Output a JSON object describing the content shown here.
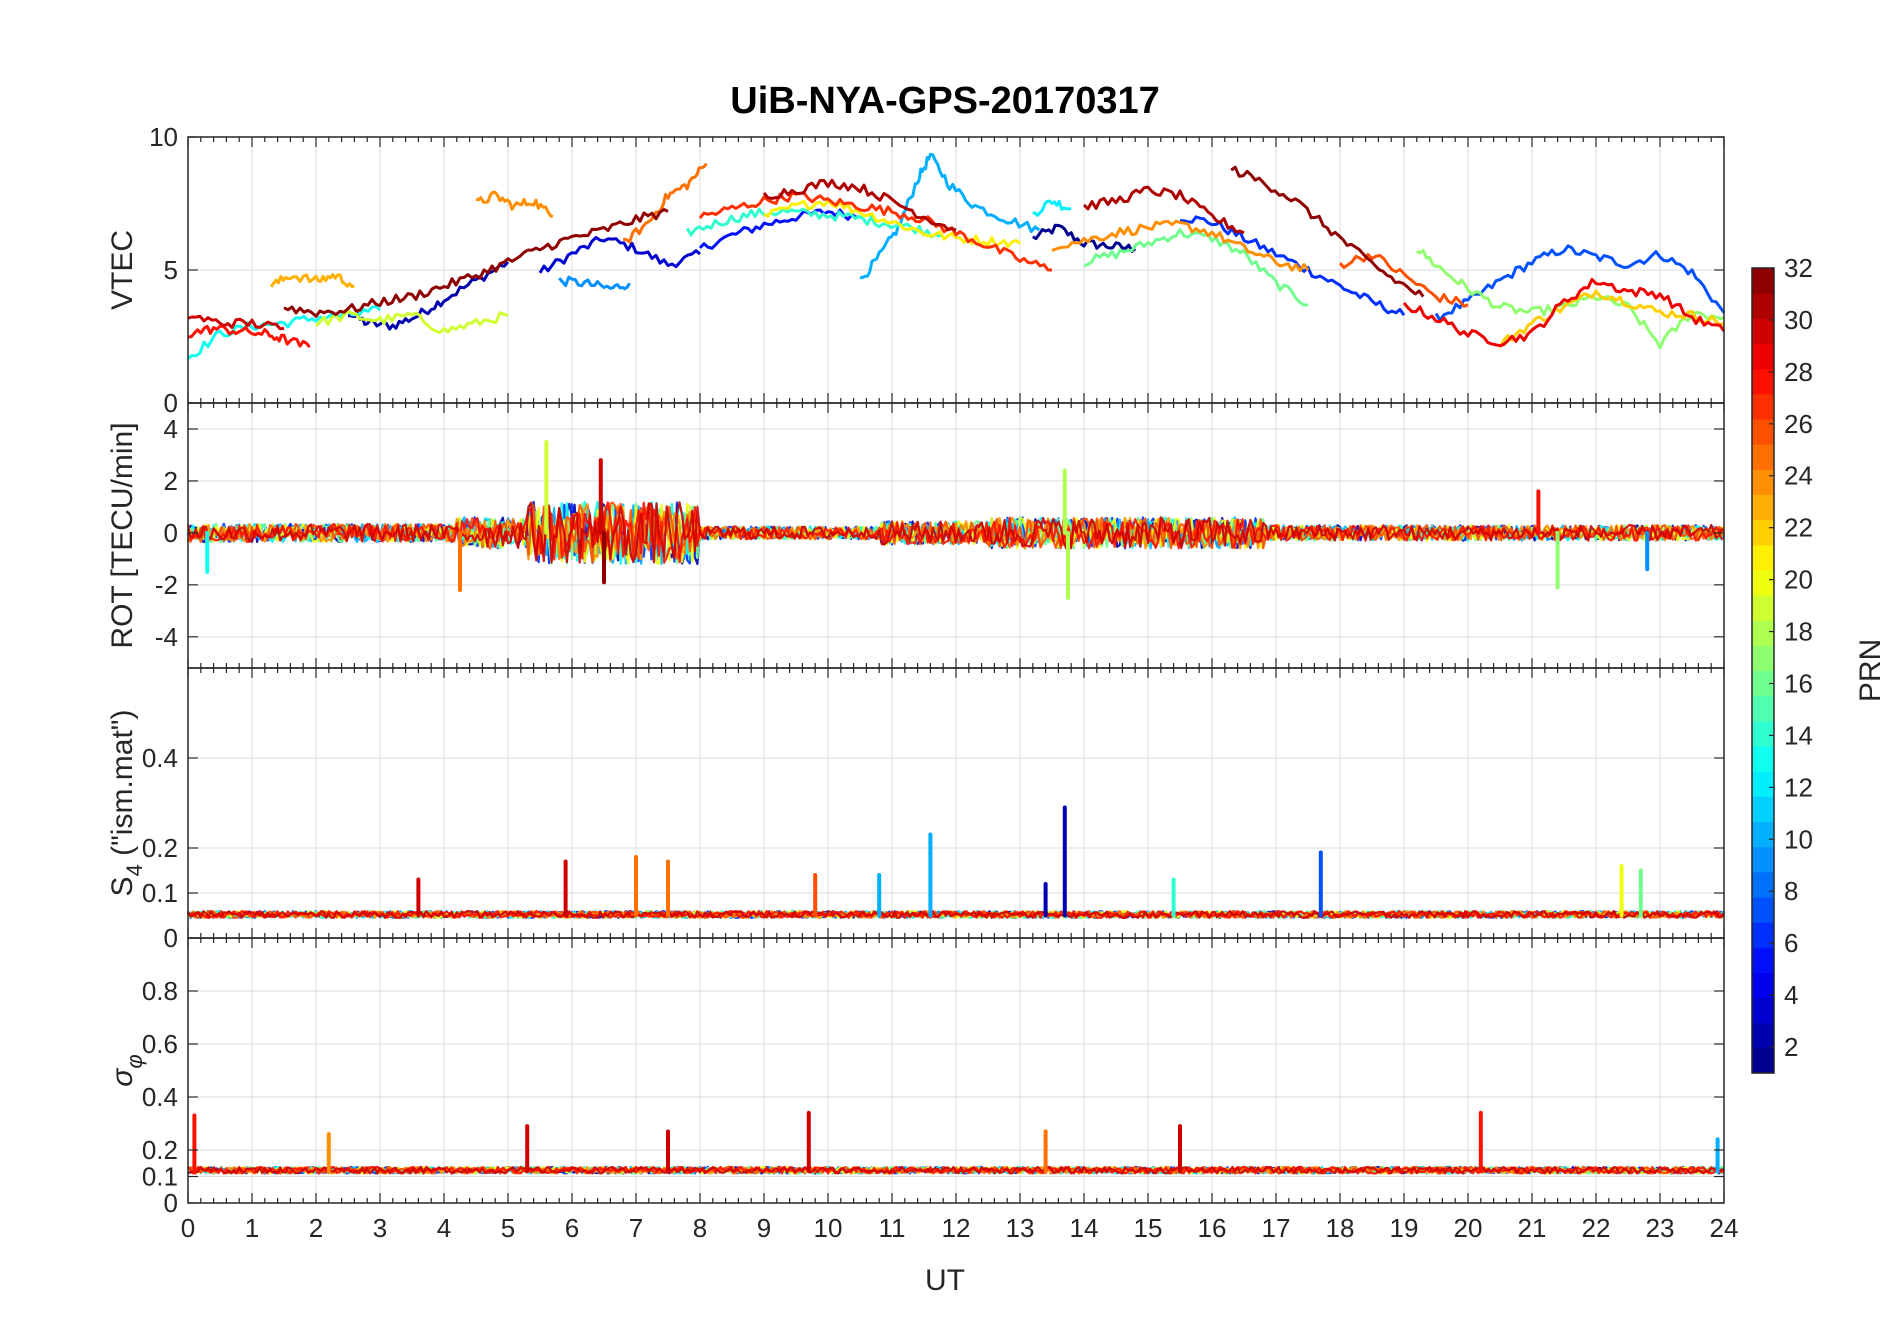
{
  "chart_data": {
    "title": "UiB-NYA-GPS-20170317",
    "xlabel": "UT",
    "xlim": [
      0,
      24
    ],
    "x_ticks": [
      "0",
      "1",
      "2",
      "3",
      "4",
      "5",
      "6",
      "7",
      "8",
      "9",
      "10",
      "11",
      "12",
      "13",
      "14",
      "15",
      "16",
      "17",
      "18",
      "19",
      "20",
      "21",
      "22",
      "23",
      "24"
    ],
    "grid": true,
    "colormap": "jet",
    "colorbar": {
      "label": "PRN",
      "range": [
        1,
        32
      ],
      "ticks": [
        "2",
        "4",
        "6",
        "8",
        "10",
        "12",
        "14",
        "16",
        "18",
        "20",
        "22",
        "24",
        "26",
        "28",
        "30",
        "32"
      ],
      "placement": "right"
    },
    "panels": [
      {
        "type": "line",
        "ylabel": "VTEC",
        "ylim": [
          0,
          10
        ],
        "y_ticks": [
          "0",
          "5",
          "10"
        ],
        "y_tick_values": [
          0,
          5,
          10
        ],
        "series": [
          {
            "prn": 1,
            "x": [
              13.2,
              13.6,
              14.0,
              14.4,
              14.8
            ],
            "y": [
              6.2,
              6.6,
              6.0,
              5.9,
              5.8
            ]
          },
          {
            "prn": 2,
            "x": [
              2.5,
              2.8,
              3.2,
              3.6,
              4.0,
              4.5,
              5.0
            ],
            "y": [
              3.4,
              3.0,
              2.9,
              3.3,
              3.9,
              4.6,
              5.3
            ]
          },
          {
            "prn": 3,
            "x": [
              5.5,
              6.0,
              6.5,
              7.0,
              7.5,
              8.0
            ],
            "y": [
              4.9,
              5.6,
              6.2,
              5.8,
              5.2,
              5.6
            ]
          },
          {
            "prn": 5,
            "x": [
              8.0,
              8.5,
              9.0,
              9.5,
              10.0,
              10.5
            ],
            "y": [
              5.8,
              6.3,
              6.7,
              7.0,
              7.2,
              7.0
            ]
          },
          {
            "prn": 6,
            "x": [
              15.5,
              16.0,
              16.5,
              17.0,
              17.5,
              18.0,
              18.5,
              19.0
            ],
            "y": [
              7.0,
              6.8,
              6.2,
              5.6,
              5.0,
              4.4,
              3.8,
              3.3
            ]
          },
          {
            "prn": 7,
            "x": [
              19.5,
              20.0,
              20.5,
              21.0,
              21.5,
              22.0,
              22.5,
              23.0,
              23.5,
              24.0
            ],
            "y": [
              3.2,
              3.8,
              4.6,
              5.3,
              5.8,
              5.5,
              5.2,
              5.6,
              4.9,
              3.4
            ]
          },
          {
            "prn": 9,
            "x": [
              5.8,
              6.2,
              6.6,
              6.9
            ],
            "y": [
              4.6,
              4.5,
              4.3,
              4.5
            ]
          },
          {
            "prn": 10,
            "x": [
              10.5,
              10.8,
              11.1,
              11.4,
              11.6,
              11.9,
              12.3,
              12.8,
              13.3
            ],
            "y": [
              4.6,
              5.5,
              6.6,
              8.4,
              9.3,
              8.2,
              7.4,
              6.9,
              6.5
            ]
          },
          {
            "prn": 12,
            "x": [
              13.2,
              13.5,
              13.8
            ],
            "y": [
              7.1,
              7.6,
              7.3
            ]
          },
          {
            "prn": 13,
            "x": [
              0.0,
              0.5,
              1.0,
              1.5,
              2.0,
              2.5,
              3.0
            ],
            "y": [
              1.7,
              2.6,
              2.9,
              3.0,
              3.2,
              3.3,
              3.5
            ]
          },
          {
            "prn": 14,
            "x": [
              7.8,
              8.3,
              8.8,
              9.3,
              9.8,
              10.3,
              10.8,
              11.3,
              11.8
            ],
            "y": [
              6.4,
              6.8,
              7.1,
              7.2,
              7.1,
              7.0,
              6.8,
              6.6,
              6.3
            ]
          },
          {
            "prn": 16,
            "x": [
              14.0,
              14.5,
              15.0,
              15.5,
              16.0,
              16.5,
              17.0,
              17.5
            ],
            "y": [
              5.3,
              5.6,
              6.0,
              6.4,
              6.2,
              5.6,
              4.5,
              3.7
            ]
          },
          {
            "prn": 17,
            "x": [
              19.2,
              19.6,
              20.0,
              20.5,
              21.0,
              21.5,
              22.0,
              22.5,
              23.0,
              23.5,
              24.0
            ],
            "y": [
              5.8,
              5.0,
              4.3,
              3.6,
              3.4,
              3.6,
              4.0,
              3.6,
              2.2,
              3.4,
              3.2
            ]
          },
          {
            "prn": 19,
            "x": [
              2.0,
              2.5,
              3.0,
              3.5,
              4.0,
              4.5,
              5.0
            ],
            "y": [
              3.0,
              3.3,
              3.1,
              3.3,
              2.7,
              3.0,
              3.3
            ]
          },
          {
            "prn": 21,
            "x": [
              9.0,
              9.5,
              10.0,
              10.5,
              11.0,
              11.5,
              12.0,
              12.5,
              13.0
            ],
            "y": [
              7.0,
              7.4,
              7.6,
              7.2,
              6.8,
              6.4,
              6.2,
              6.1,
              6.0
            ]
          },
          {
            "prn": 22,
            "x": [
              20.5,
              21.0,
              21.5,
              22.0,
              22.5,
              23.0,
              23.5,
              24.0
            ],
            "y": [
              2.2,
              3.0,
              3.6,
              4.2,
              3.8,
              3.4,
              3.3,
              3.0
            ]
          },
          {
            "prn": 23,
            "x": [
              1.3,
              1.6,
              2.0,
              2.3,
              2.6
            ],
            "y": [
              4.4,
              4.8,
              4.6,
              4.8,
              4.4
            ]
          },
          {
            "prn": 24,
            "x": [
              4.5,
              4.8,
              5.1,
              5.4,
              5.7
            ],
            "y": [
              7.5,
              7.8,
              7.4,
              7.6,
              7.0
            ]
          },
          {
            "prn": 24,
            "x": [
              13.5,
              14.0,
              14.5,
              15.0,
              15.5,
              16.0,
              16.5,
              17.0,
              17.5
            ],
            "y": [
              5.9,
              6.1,
              6.4,
              6.6,
              6.7,
              6.4,
              5.8,
              5.3,
              5.0
            ]
          },
          {
            "prn": 25,
            "x": [
              6.8,
              7.2,
              7.5,
              7.8,
              8.1
            ],
            "y": [
              6.0,
              6.8,
              7.8,
              8.2,
              9.0
            ]
          },
          {
            "prn": 26,
            "x": [
              18.0,
              18.5,
              19.0,
              19.5,
              20.0
            ],
            "y": [
              5.2,
              5.6,
              4.8,
              4.0,
              3.7
            ]
          },
          {
            "prn": 27,
            "x": [
              8.0,
              8.5,
              9.0,
              9.5,
              10.0,
              10.5,
              11.0,
              11.5,
              12.0,
              12.5,
              13.0,
              13.5
            ],
            "y": [
              7.0,
              7.3,
              7.6,
              7.8,
              7.6,
              7.4,
              7.2,
              6.9,
              6.4,
              5.9,
              5.4,
              5.0
            ]
          },
          {
            "prn": 28,
            "x": [
              0.0,
              0.4,
              0.8,
              1.2,
              1.5,
              1.9
            ],
            "y": [
              2.6,
              2.8,
              2.7,
              2.6,
              2.4,
              2.1
            ]
          },
          {
            "prn": 29,
            "x": [
              19.0,
              19.5,
              20.0,
              20.5,
              21.0,
              21.5,
              22.0,
              22.5,
              23.0,
              23.5,
              24.0
            ],
            "y": [
              3.7,
              3.2,
              2.6,
              2.3,
              2.6,
              3.8,
              4.6,
              4.2,
              4.1,
              3.2,
              2.7
            ]
          },
          {
            "prn": 30,
            "x": [
              0.0,
              0.5,
              1.0,
              1.5
            ],
            "y": [
              3.3,
              3.0,
              3.0,
              2.8
            ]
          },
          {
            "prn": 31,
            "x": [
              9.0,
              9.5,
              10.0,
              10.5,
              11.0,
              11.5,
              12.0
            ],
            "y": [
              7.8,
              8.0,
              8.3,
              8.1,
              7.6,
              7.0,
              6.5
            ]
          },
          {
            "prn": 31,
            "x": [
              14.0,
              14.5,
              15.0,
              15.5,
              16.0,
              16.5
            ],
            "y": [
              7.4,
              7.6,
              8.0,
              7.8,
              7.0,
              6.4
            ]
          },
          {
            "prn": 32,
            "x": [
              1.5,
              2.0,
              2.5,
              3.0,
              3.5,
              4.0,
              4.5,
              5.0,
              5.5,
              6.0,
              6.5,
              7.0,
              7.5
            ],
            "y": [
              3.6,
              3.4,
              3.5,
              3.8,
              4.0,
              4.4,
              4.8,
              5.3,
              5.8,
              6.2,
              6.5,
              6.9,
              7.2
            ]
          },
          {
            "prn": 32,
            "x": [
              16.3,
              16.8,
              17.3,
              17.8,
              18.3,
              18.8,
              19.3
            ],
            "y": [
              8.8,
              8.3,
              7.6,
              6.6,
              5.6,
              4.7,
              4.0
            ]
          }
        ]
      },
      {
        "type": "line",
        "ylabel": "ROT [TECU/min]",
        "ylim": [
          -5.2,
          5
        ],
        "y_ticks": [
          "-4",
          "-2",
          "0",
          "2",
          "4"
        ],
        "y_tick_values": [
          -4,
          -2,
          0,
          2,
          4
        ],
        "baseline": 0,
        "activity": [
          {
            "x0": 0.0,
            "x1": 4.2,
            "amp": 0.35
          },
          {
            "x0": 4.2,
            "x1": 5.3,
            "amp": 0.6
          },
          {
            "x0": 5.3,
            "x1": 8.0,
            "amp": 1.2
          },
          {
            "x0": 8.0,
            "x1": 10.8,
            "amp": 0.25
          },
          {
            "x0": 10.8,
            "x1": 12.5,
            "amp": 0.45
          },
          {
            "x0": 12.5,
            "x1": 16.8,
            "amp": 0.6
          },
          {
            "x0": 16.8,
            "x1": 24.0,
            "amp": 0.3
          }
        ],
        "spikes": [
          {
            "x": 4.25,
            "y": -2.2,
            "prn": 25
          },
          {
            "x": 5.6,
            "y": 3.5,
            "prn": 19
          },
          {
            "x": 6.45,
            "y": 2.8,
            "prn": 30
          },
          {
            "x": 6.5,
            "y": -1.9,
            "prn": 32
          },
          {
            "x": 13.7,
            "y": 2.4,
            "prn": 18
          },
          {
            "x": 13.75,
            "y": -2.5,
            "prn": 18
          },
          {
            "x": 21.4,
            "y": -2.1,
            "prn": 17
          },
          {
            "x": 21.1,
            "y": 1.6,
            "prn": 28
          },
          {
            "x": 0.3,
            "y": -1.5,
            "prn": 13
          },
          {
            "x": 22.8,
            "y": -1.4,
            "prn": 9
          }
        ]
      },
      {
        "type": "line",
        "ylabel": "S4 (\"ism.mat\")",
        "ylabel_main": "S",
        "ylabel_sub": "4",
        "ylabel_rest": " (\"ism.mat\")",
        "ylim": [
          0,
          0.6
        ],
        "y_ticks": [
          "0",
          "0.1",
          "0.2",
          "0.4"
        ],
        "y_tick_values": [
          0,
          0.1,
          0.2,
          0.4
        ],
        "baseline": 0.05,
        "spikes": [
          {
            "x": 3.6,
            "y": 0.13,
            "prn": 30
          },
          {
            "x": 5.9,
            "y": 0.17,
            "prn": 30
          },
          {
            "x": 7.0,
            "y": 0.18,
            "prn": 25
          },
          {
            "x": 7.5,
            "y": 0.17,
            "prn": 25
          },
          {
            "x": 9.8,
            "y": 0.14,
            "prn": 26
          },
          {
            "x": 10.8,
            "y": 0.14,
            "prn": 10
          },
          {
            "x": 11.6,
            "y": 0.23,
            "prn": 10
          },
          {
            "x": 13.7,
            "y": 0.29,
            "prn": 2
          },
          {
            "x": 13.4,
            "y": 0.12,
            "prn": 2
          },
          {
            "x": 15.4,
            "y": 0.13,
            "prn": 14
          },
          {
            "x": 17.7,
            "y": 0.19,
            "prn": 7
          },
          {
            "x": 22.4,
            "y": 0.16,
            "prn": 20
          },
          {
            "x": 22.7,
            "y": 0.15,
            "prn": 16
          }
        ]
      },
      {
        "type": "line",
        "ylabel": "σφ",
        "ylabel_main": "σ",
        "ylabel_sub": "φ",
        "ylim": [
          0,
          1
        ],
        "y_ticks": [
          "0",
          "0.1",
          "0.2",
          "0.4",
          "0.6",
          "0.8"
        ],
        "y_tick_values": [
          0,
          0.1,
          0.2,
          0.4,
          0.6,
          0.8
        ],
        "baseline": 0.12,
        "spikes": [
          {
            "x": 0.1,
            "y": 0.33,
            "prn": 28
          },
          {
            "x": 2.2,
            "y": 0.26,
            "prn": 24
          },
          {
            "x": 5.3,
            "y": 0.29,
            "prn": 30
          },
          {
            "x": 7.5,
            "y": 0.27,
            "prn": 30
          },
          {
            "x": 9.7,
            "y": 0.34,
            "prn": 30
          },
          {
            "x": 13.4,
            "y": 0.27,
            "prn": 25
          },
          {
            "x": 15.5,
            "y": 0.29,
            "prn": 30
          },
          {
            "x": 20.2,
            "y": 0.34,
            "prn": 28
          },
          {
            "x": 23.9,
            "y": 0.24,
            "prn": 10
          }
        ]
      }
    ]
  }
}
